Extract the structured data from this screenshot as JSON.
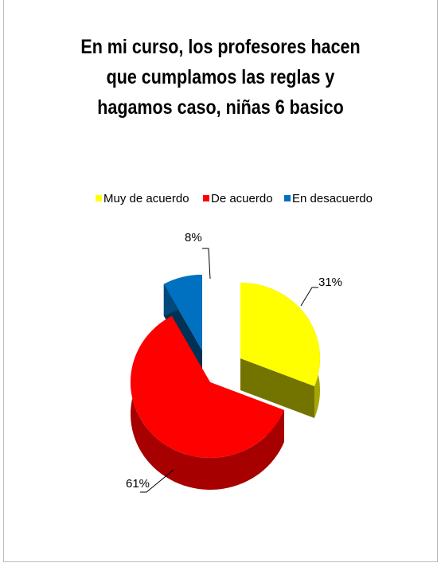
{
  "chart_data": {
    "type": "pie",
    "title": "En mi curso, los profesores hacen que cumplamos las reglas y hagamos caso, niñas 6 basico",
    "categories": [
      "Muy de acuerdo",
      "De acuerdo",
      "En desacuerdo"
    ],
    "values": [
      31,
      61,
      8
    ],
    "value_labels": [
      "31%",
      "61%",
      "8%"
    ],
    "colors": [
      "#ffff00",
      "#ff0000",
      "#0070c0"
    ],
    "legend": "top"
  }
}
